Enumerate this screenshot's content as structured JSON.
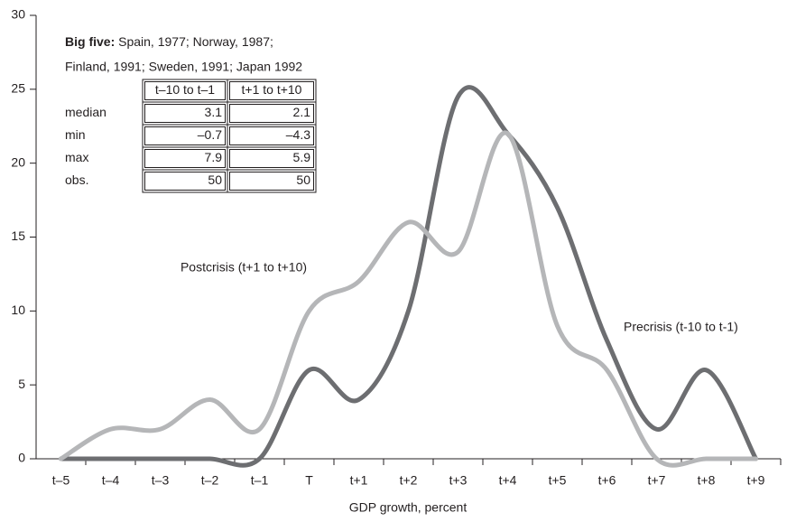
{
  "chart_data": {
    "type": "line",
    "categories": [
      "t–5",
      "t–4",
      "t–3",
      "t–2",
      "t–1",
      "T",
      "t+1",
      "t+2",
      "t+3",
      "t+4",
      "t+5",
      "t+6",
      "t+7",
      "t+8",
      "t+9"
    ],
    "series": [
      {
        "name": "Precrisis (t-10 to t-1)",
        "color": "#6d6e71",
        "values": [
          0,
          0,
          0,
          0,
          0,
          6,
          4,
          10,
          24.5,
          22,
          17,
          8,
          2,
          6,
          0
        ]
      },
      {
        "name": "Postcrisis (t+1 to t+10)",
        "color": "#b5b6b8",
        "values": [
          0,
          2,
          2,
          4,
          2,
          10,
          12,
          16,
          14,
          22,
          9,
          6,
          0,
          0,
          0
        ]
      }
    ],
    "ylim": [
      0,
      30
    ],
    "yticks": [
      0,
      5,
      10,
      15,
      20,
      25,
      30
    ],
    "xlabel": "GDP growth, percent",
    "annotation": {
      "bold": "Big five:",
      "lines": [
        "Spain, 1977; Norway, 1987;",
        "Finland, 1991; Sweden, 1991; Japan 1992"
      ]
    },
    "inset_table": {
      "columns": [
        "t–10 to t–1",
        "t+1 to t+10"
      ],
      "rows": [
        {
          "label": "median",
          "values": [
            "3.1",
            "2.1"
          ]
        },
        {
          "label": "min",
          "values": [
            "–0.7",
            "–4.3"
          ]
        },
        {
          "label": "max",
          "values": [
            "7.9",
            "5.9"
          ]
        },
        {
          "label": "obs.",
          "values": [
            "50",
            "50"
          ]
        }
      ]
    }
  }
}
